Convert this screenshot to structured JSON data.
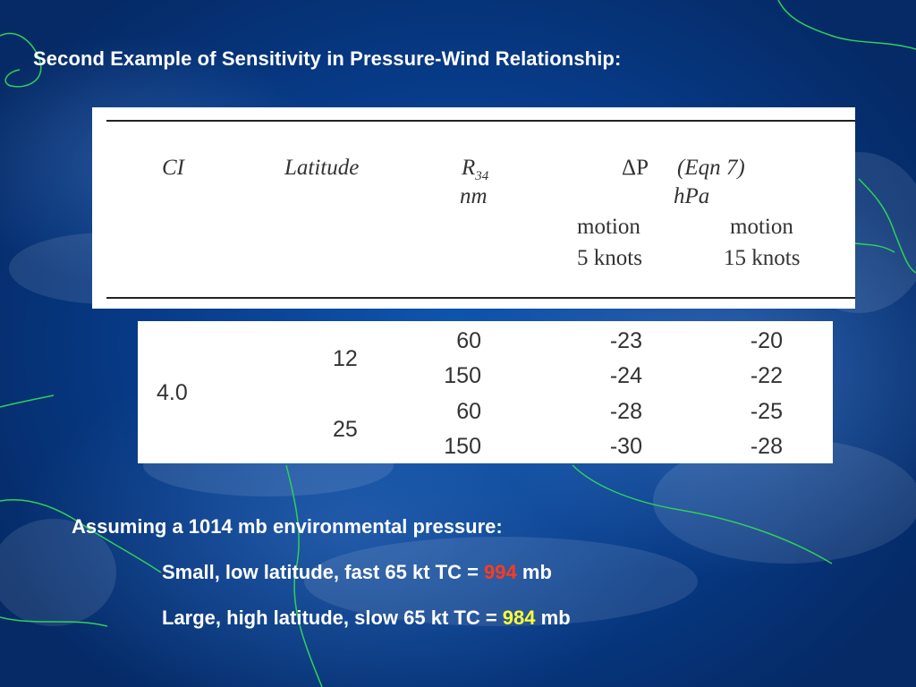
{
  "slide": {
    "title": "Second Example of Sensitivity in Pressure-Wind Relationship:"
  },
  "table": {
    "header": {
      "ci": "CI",
      "latitude": "Latitude",
      "r_main": "R",
      "r_sub": "34",
      "r_unit": "nm",
      "dp_symbol": "ΔP",
      "dp_eqn": "(Eqn 7)",
      "dp_unit": "hPa",
      "col_a_line1": "motion",
      "col_a_line2": "5 knots",
      "col_b_line1": "motion",
      "col_b_line2": "15 knots"
    },
    "ci_value": "4.0",
    "groups": [
      {
        "latitude": "12",
        "rows": [
          {
            "r34": "60",
            "dp5": "-23",
            "dp15": "-20"
          },
          {
            "r34": "150",
            "dp5": "-24",
            "dp15": "-22"
          }
        ]
      },
      {
        "latitude": "25",
        "rows": [
          {
            "r34": "60",
            "dp5": "-28",
            "dp15": "-25"
          },
          {
            "r34": "150",
            "dp5": "-30",
            "dp15": "-28"
          }
        ]
      }
    ]
  },
  "notes": {
    "assumption": "Assuming a 1014 mb environmental pressure:",
    "line1_prefix": "Small, low latitude, fast 65 kt TC = ",
    "line1_value": "994",
    "line1_suffix": " mb",
    "line2_prefix": "Large, high latitude, slow 65 kt TC = ",
    "line2_value": "984",
    "line2_suffix": " mb"
  },
  "colors": {
    "highlight_low": "#ff3b1f",
    "highlight_high": "#ffff33",
    "coastline": "#2fd15a"
  }
}
